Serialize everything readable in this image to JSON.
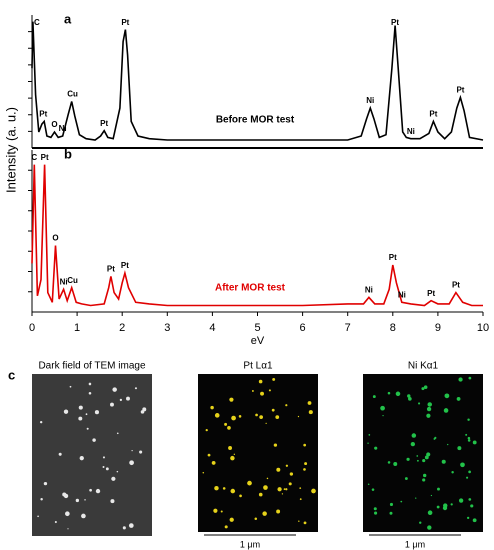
{
  "chart_data": [
    {
      "type": "line",
      "panel_label": "a",
      "annotation": "Before MOR test",
      "xlim": [
        0,
        10
      ],
      "ylim": [
        0,
        100
      ],
      "series": [
        {
          "color": "#000000",
          "x": [
            0,
            0.02,
            0.08,
            0.15,
            0.22,
            0.27,
            0.33,
            0.42,
            0.5,
            0.58,
            0.68,
            0.8,
            0.88,
            0.95,
            1.05,
            1.2,
            1.4,
            1.52,
            1.6,
            1.68,
            1.8,
            1.95,
            2.02,
            2.07,
            2.12,
            2.2,
            2.35,
            2.6,
            3,
            4,
            5,
            6,
            7,
            7.3,
            7.42,
            7.5,
            7.58,
            7.7,
            7.85,
            7.98,
            8.05,
            8.12,
            8.22,
            8.3,
            8.4,
            8.6,
            8.8,
            8.9,
            9.0,
            9.15,
            9.3,
            9.42,
            9.5,
            9.58,
            9.7,
            10
          ],
          "values": [
            60,
            95,
            40,
            12,
            18,
            20,
            9,
            8,
            12,
            8,
            9,
            25,
            35,
            24,
            10,
            7,
            6,
            9,
            13,
            8,
            7,
            30,
            80,
            89,
            70,
            20,
            9,
            7,
            6,
            6,
            6,
            6,
            6,
            9,
            22,
            30,
            22,
            8,
            10,
            60,
            92,
            60,
            12,
            8,
            7,
            7,
            11,
            20,
            12,
            7,
            12,
            30,
            38,
            28,
            8,
            6
          ]
        }
      ],
      "peak_labels": [
        {
          "text": "C",
          "x": 0.02
        },
        {
          "text": "Pt",
          "x": 0.25
        },
        {
          "text": "O",
          "x": 0.5
        },
        {
          "text": "Ni",
          "x": 0.68
        },
        {
          "text": "Cu",
          "x": 0.9
        },
        {
          "text": "Pt",
          "x": 1.6
        },
        {
          "text": "Pt",
          "x": 2.07
        },
        {
          "text": "Ni",
          "x": 7.5
        },
        {
          "text": "Pt",
          "x": 8.05
        },
        {
          "text": "Ni",
          "x": 8.4
        },
        {
          "text": "Pt",
          "x": 8.9
        },
        {
          "text": "Pt",
          "x": 9.5
        }
      ]
    },
    {
      "type": "line",
      "panel_label": "b",
      "annotation": "After MOR test",
      "ylabel": "Intensity (a. u.)",
      "xlabel": "eV",
      "xlim": [
        0,
        10
      ],
      "ylim": [
        0,
        100
      ],
      "xticks": [
        0,
        1,
        2,
        3,
        4,
        5,
        6,
        7,
        8,
        9,
        10
      ],
      "series": [
        {
          "color": "#e00000",
          "x": [
            0,
            0.05,
            0.12,
            0.2,
            0.28,
            0.35,
            0.45,
            0.52,
            0.6,
            0.7,
            0.78,
            0.88,
            0.98,
            1.1,
            1.3,
            1.6,
            1.7,
            1.75,
            1.82,
            1.92,
            2.0,
            2.06,
            2.14,
            2.3,
            2.6,
            3,
            4,
            5,
            6,
            7,
            7.35,
            7.47,
            7.6,
            7.8,
            7.92,
            8.0,
            8.08,
            8.2,
            8.4,
            8.7,
            8.85,
            9.0,
            9.25,
            9.4,
            9.55,
            9.75,
            10
          ],
          "values": [
            30,
            91,
            10,
            20,
            91,
            12,
            6,
            41,
            8,
            14,
            7,
            15,
            6,
            5,
            4,
            5,
            15,
            22,
            12,
            8,
            18,
            24,
            15,
            6,
            5,
            4,
            4,
            4,
            4,
            5,
            5,
            9,
            5,
            5,
            14,
            29,
            18,
            6,
            5,
            4,
            7,
            5,
            5,
            12,
            6,
            4,
            4
          ]
        }
      ],
      "peak_labels": [
        {
          "text": "C",
          "x": 0.05
        },
        {
          "text": "Pt",
          "x": 0.28
        },
        {
          "text": "O",
          "x": 0.52
        },
        {
          "text": "Ni",
          "x": 0.7
        },
        {
          "text": "Cu",
          "x": 0.9
        },
        {
          "text": "Pt",
          "x": 1.75
        },
        {
          "text": "Pt",
          "x": 2.06
        },
        {
          "text": "Ni",
          "x": 7.47
        },
        {
          "text": "Pt",
          "x": 8.0
        },
        {
          "text": "Ni",
          "x": 8.2
        },
        {
          "text": "Pt",
          "x": 8.85
        },
        {
          "text": "Pt",
          "x": 9.4
        }
      ]
    }
  ],
  "panel_c": {
    "label": "c",
    "images": [
      {
        "title": "Dark field of TEM image"
      },
      {
        "title": "Pt Lα1",
        "scale_bar": "1 μm"
      },
      {
        "title": "Ni Kα1",
        "scale_bar": "1 μm"
      }
    ]
  }
}
